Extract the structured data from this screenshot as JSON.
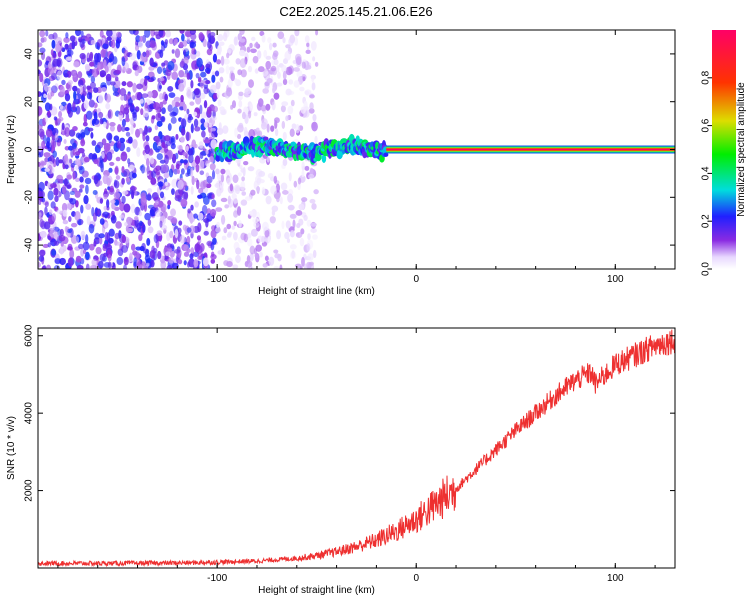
{
  "figure": {
    "title": "C2E2.2025.145.21.06.E26"
  },
  "chart_data": [
    {
      "type": "heatmap",
      "name": "spectrogram",
      "xlabel": "Height of straight line (km)",
      "ylabel": "Frequency (Hz)",
      "xlim": [
        -190,
        130
      ],
      "ylim": [
        -50,
        50
      ],
      "xticks": [
        -100,
        0,
        100
      ],
      "yticks": [
        -40,
        -20,
        0,
        20,
        40
      ],
      "colorbar": {
        "label": "Normalized spectral amplitude",
        "range": [
          0.0,
          1.0
        ],
        "ticks": [
          0.0,
          0.2,
          0.4,
          0.6,
          0.8
        ],
        "colormap": "hsv-rainbow"
      },
      "features": [
        {
          "kind": "noise",
          "x_range": [
            -190,
            -100
          ],
          "freq_range": [
            -50,
            50
          ],
          "amplitude": 0.2
        },
        {
          "kind": "noise",
          "x_range": [
            -100,
            -50
          ],
          "freq_range": [
            -50,
            50
          ],
          "amplitude": 0.08
        },
        {
          "kind": "carrier-band",
          "x_range": [
            -100,
            -15
          ],
          "freq_center": 0,
          "freq_width": 8,
          "amplitude": 0.35
        },
        {
          "kind": "carrier-line",
          "x_range": [
            -15,
            130
          ],
          "freq_center": 0,
          "amplitude": 1.0
        }
      ]
    },
    {
      "type": "line",
      "name": "snr",
      "xlabel": "Height of straight line (km)",
      "ylabel": "SNR (10 * v/v)",
      "xlim": [
        -190,
        130
      ],
      "ylim": [
        0,
        6200
      ],
      "xticks": [
        -100,
        0,
        100
      ],
      "yticks": [
        2000,
        4000,
        6000
      ],
      "color": "#ee3030",
      "series": [
        {
          "x": [
            -190,
            -150,
            -120,
            -100,
            -80,
            -60,
            -50,
            -40,
            -30,
            -20,
            -10,
            0,
            10,
            20,
            30,
            40,
            50,
            60,
            70,
            80,
            88,
            90,
            100,
            110,
            120,
            130
          ],
          "y": [
            120,
            120,
            130,
            150,
            180,
            250,
            320,
            420,
            550,
            720,
            950,
            1250,
            1650,
            2050,
            2550,
            3050,
            3550,
            4000,
            4450,
            4850,
            5050,
            4750,
            5250,
            5500,
            5750,
            5900
          ]
        }
      ]
    }
  ]
}
